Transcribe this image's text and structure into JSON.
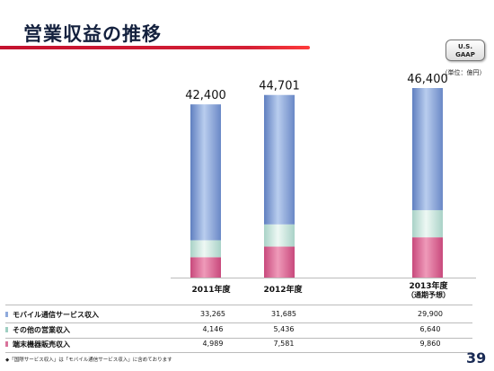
{
  "header": {
    "title": "営業収益の推移",
    "gaap_line1": "U.S.",
    "gaap_line2": "GAAP",
    "unit": "（単位：億円）"
  },
  "years": [
    {
      "label": "2011年度",
      "sub": ""
    },
    {
      "label": "2012年度",
      "sub": ""
    },
    {
      "label": "2013年度",
      "sub": "（通期予想）"
    }
  ],
  "totals": [
    "42,400",
    "44,701",
    "46,400"
  ],
  "table": {
    "rows": [
      {
        "name": "モバイル通信サービス収入",
        "values": [
          "33,265",
          "31,685",
          "29,900"
        ]
      },
      {
        "name": "その他の営業収入",
        "values": [
          "4,146",
          "5,436",
          "6,640"
        ]
      },
      {
        "name": "端末機器販売収入",
        "values": [
          "4,989",
          "7,581",
          "9,860"
        ]
      }
    ]
  },
  "footnote": "◆「国際サービス収入」は「モバイル通信サービス収入」に含めております",
  "page_number": "39",
  "colors": {
    "mobile": "#8faadc",
    "other": "#cfe8e0",
    "handset": "#d9739b",
    "title_rule": "#c4122f"
  },
  "chart_data": {
    "type": "bar",
    "stacked": true,
    "categories": [
      "2011年度",
      "2012年度",
      "2013年度（通期予想）"
    ],
    "series": [
      {
        "name": "端末機器販売収入",
        "values": [
          4989,
          7581,
          9860
        ]
      },
      {
        "name": "その他の営業収入",
        "values": [
          4146,
          5436,
          6640
        ]
      },
      {
        "name": "モバイル通信サービス収入",
        "values": [
          33265,
          31685,
          29900
        ]
      }
    ],
    "totals": [
      42400,
      44701,
      46400
    ],
    "title": "営業収益の推移",
    "ylabel": "",
    "unit": "（単位：億円）",
    "grid": false,
    "legend": "table-bottom"
  }
}
